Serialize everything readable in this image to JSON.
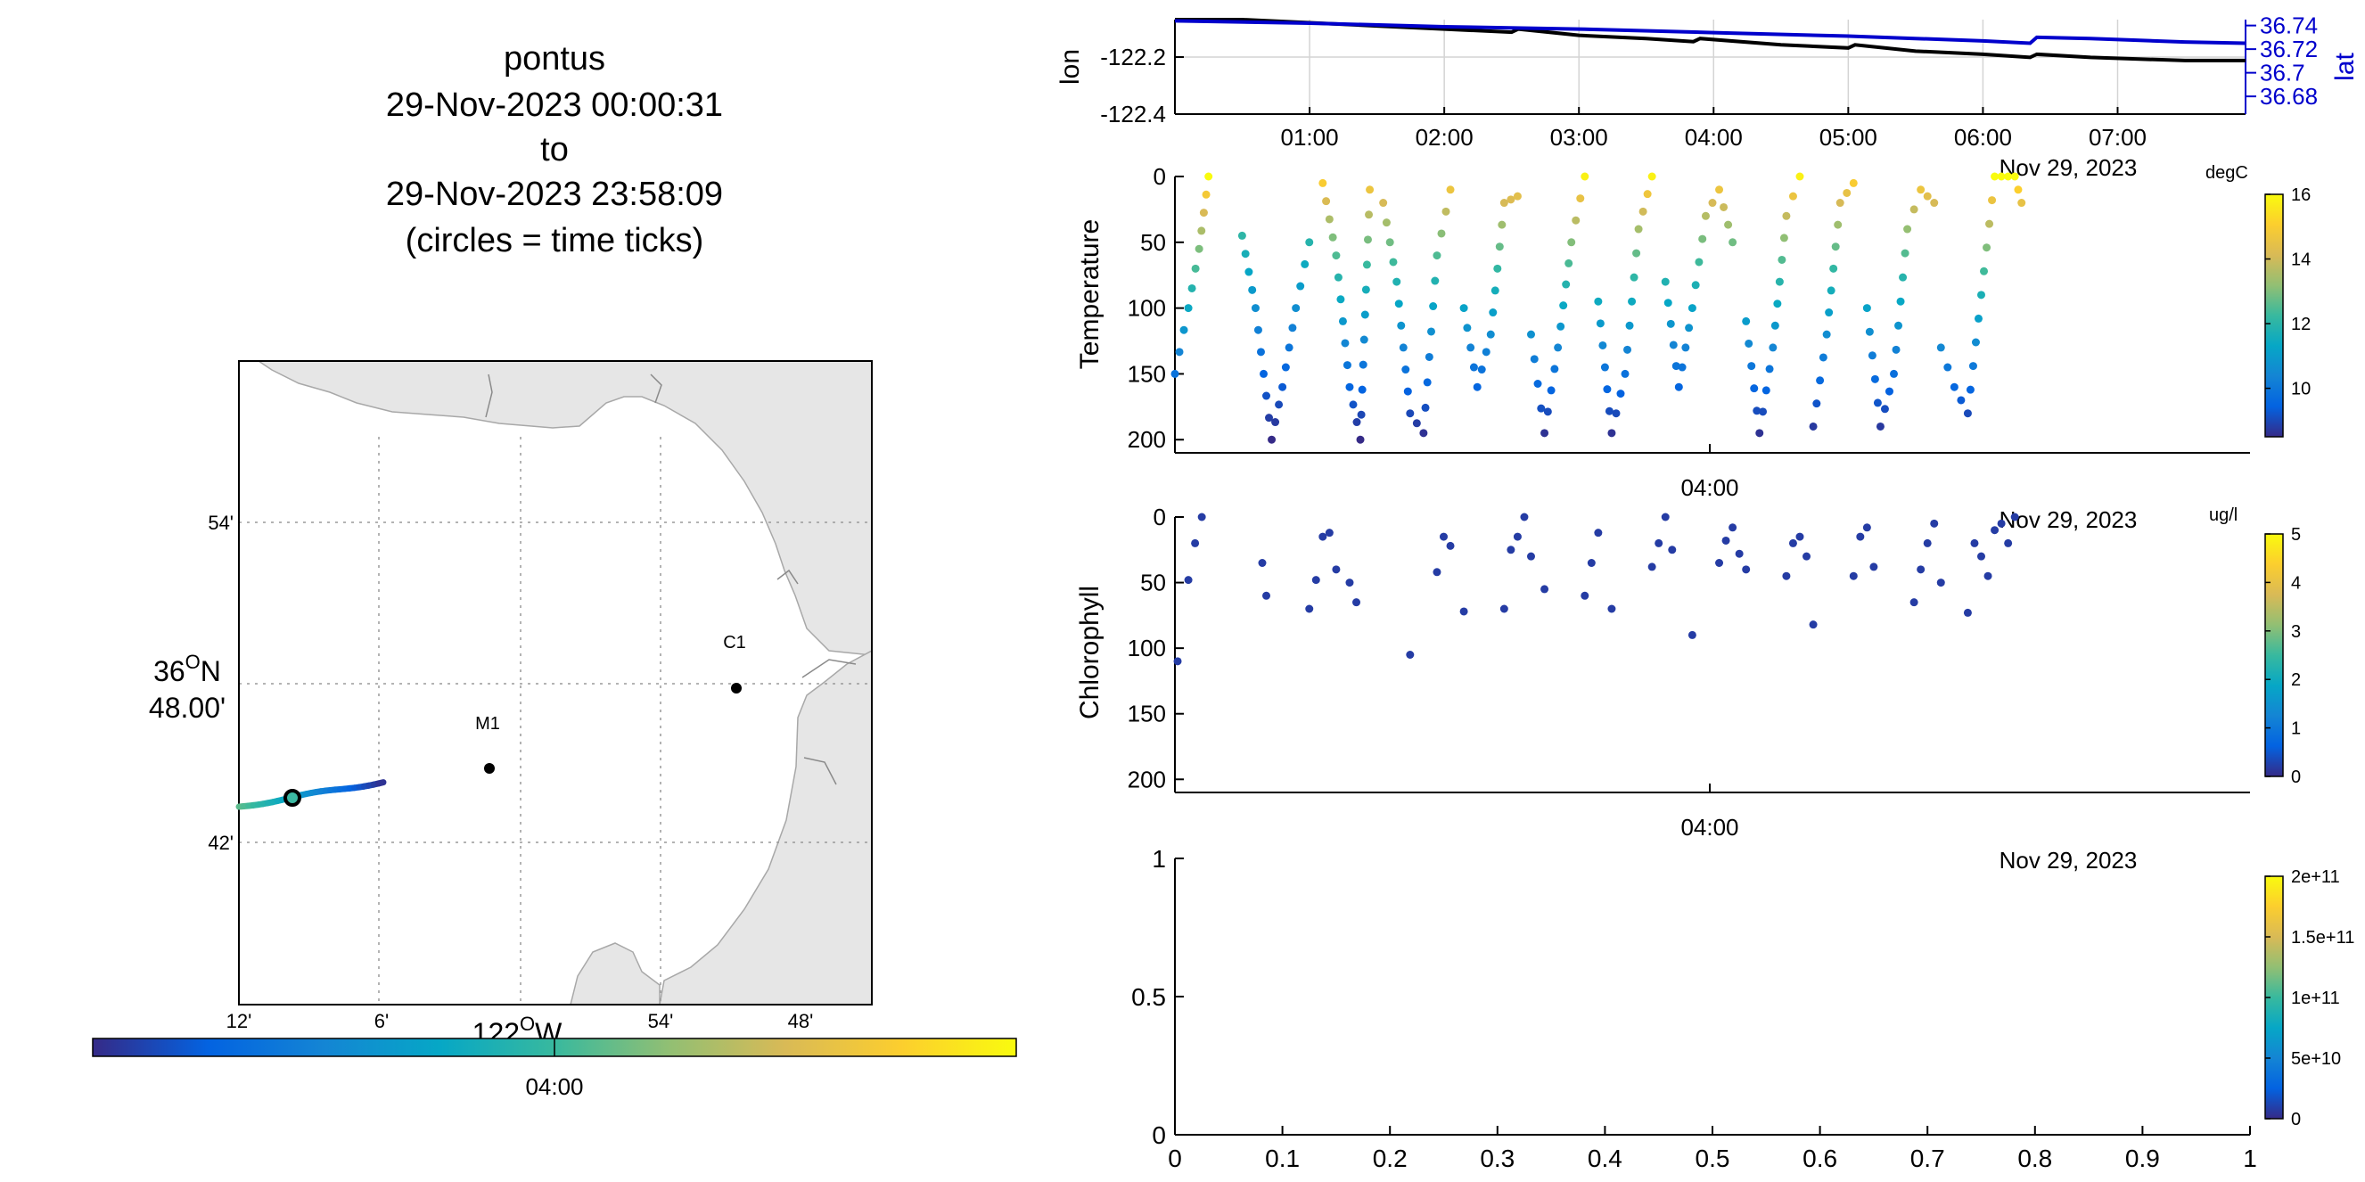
{
  "title_block": {
    "lines": [
      "pontus",
      "29-Nov-2023 00:00:31",
      "to",
      "29-Nov-2023 23:58:09",
      "(circles = time ticks)"
    ]
  },
  "map": {
    "lat_ticks": [
      "54'",
      "42'"
    ],
    "lat_major_deg": "36",
    "lat_major_suffix": "N",
    "lat_major_min": "48.00'",
    "lon_ticks": [
      "12'",
      "6'",
      "54'",
      "48'"
    ],
    "lon_major_deg": "122",
    "lon_major_suffix": "W",
    "stations": [
      {
        "label": "M1",
        "lon": -122.03,
        "lat": 36.748
      },
      {
        "label": "C1",
        "lon": -121.85,
        "lat": 36.8
      }
    ],
    "track_colorbar_label": "04:00"
  },
  "chart_data": [
    {
      "type": "line",
      "name": "position",
      "ylabel": "lon",
      "y2label": "lat",
      "x_ticks": [
        "01:00",
        "02:00",
        "03:00",
        "04:00",
        "05:00",
        "06:00",
        "07:00"
      ],
      "xlim_hours": [
        0.0,
        7.95
      ],
      "ylim": [
        -122.4,
        -122.1
      ],
      "y_ticks": [
        "-122.2",
        "-122.4"
      ],
      "y2lim": [
        36.665,
        36.745
      ],
      "y2_ticks": [
        "36.74",
        "36.72",
        "36.7",
        "36.68"
      ],
      "series": [
        {
          "axis": "left",
          "color": "#000000",
          "x": [
            0.0,
            0.5,
            1.0,
            1.5,
            2.0,
            2.5,
            2.55,
            3.0,
            3.5,
            3.85,
            3.9,
            4.5,
            5.0,
            5.05,
            5.5,
            6.0,
            6.35,
            6.4,
            6.8,
            7.5,
            7.95
          ],
          "y": [
            -122.1,
            -122.1,
            -122.11,
            -122.12,
            -122.13,
            -122.14,
            -122.13,
            -122.15,
            -122.16,
            -122.17,
            -122.16,
            -122.18,
            -122.19,
            -122.18,
            -122.2,
            -122.21,
            -122.22,
            -122.21,
            -122.22,
            -122.23,
            -122.23
          ]
        },
        {
          "axis": "right",
          "color": "#0000cc",
          "x": [
            0.0,
            1.0,
            2.0,
            3.0,
            4.0,
            5.0,
            5.5,
            6.0,
            6.35,
            6.4,
            6.8,
            7.5,
            7.95
          ],
          "y": [
            36.744,
            36.742,
            36.739,
            36.737,
            36.734,
            36.731,
            36.729,
            36.727,
            36.725,
            36.73,
            36.729,
            36.726,
            36.725
          ]
        }
      ]
    },
    {
      "type": "scatter",
      "name": "temperature",
      "ylabel": "Temperature",
      "x_tick": "04:00",
      "date_label": "Nov 29, 2023",
      "ylim": [
        0,
        210
      ],
      "y_ticks": [
        "0",
        "50",
        "100",
        "150",
        "200"
      ],
      "colorbar": {
        "unit": "degC",
        "min": 8.5,
        "max": 16,
        "ticks": [
          "16",
          "14",
          "12",
          "10"
        ]
      },
      "profiles": [
        {
          "x": [
            0.0,
            0.1,
            0.18,
            0.25
          ],
          "depth": [
            150,
            100,
            55,
            0
          ],
          "vtop": 16.0
        },
        {
          "x": [
            0.5,
            0.6,
            0.72,
            0.8,
            0.9,
            1.0
          ],
          "depth": [
            45,
            100,
            200,
            160,
            100,
            50
          ],
          "vtop": 14.0
        },
        {
          "x": [
            1.1,
            1.2,
            1.3,
            1.38,
            1.45
          ],
          "depth": [
            5,
            60,
            160,
            200,
            10
          ],
          "vtop": 15.5
        },
        {
          "x": [
            1.55,
            1.65,
            1.75,
            1.85,
            1.95,
            2.05
          ],
          "depth": [
            20,
            80,
            180,
            195,
            60,
            10
          ],
          "vtop": 15.5
        },
        {
          "x": [
            2.15,
            2.25,
            2.35,
            2.45,
            2.55
          ],
          "depth": [
            100,
            160,
            120,
            20,
            15
          ],
          "vtop": 15.5
        },
        {
          "x": [
            2.65,
            2.75,
            2.85,
            2.95,
            3.05
          ],
          "depth": [
            120,
            195,
            130,
            50,
            0
          ],
          "vtop": 15.8
        },
        {
          "x": [
            3.15,
            3.25,
            3.35,
            3.45,
            3.55
          ],
          "depth": [
            95,
            195,
            150,
            40,
            0
          ],
          "vtop": 15.8
        },
        {
          "x": [
            3.65,
            3.75,
            3.85,
            3.95,
            4.05,
            4.15
          ],
          "depth": [
            80,
            160,
            100,
            30,
            10,
            50
          ],
          "vtop": 15.5
        },
        {
          "x": [
            4.25,
            4.35,
            4.45,
            4.55,
            4.65
          ],
          "depth": [
            110,
            195,
            130,
            30,
            0
          ],
          "vtop": 15.8
        },
        {
          "x": [
            4.75,
            4.85,
            4.95,
            5.05
          ],
          "depth": [
            190,
            120,
            20,
            5
          ],
          "vtop": 15.5
        },
        {
          "x": [
            5.15,
            5.25,
            5.35,
            5.45,
            5.55,
            5.65
          ],
          "depth": [
            100,
            190,
            150,
            40,
            10,
            20
          ],
          "vtop": 15.5
        },
        {
          "x": [
            5.7,
            5.8,
            5.9,
            6.0,
            6.1,
            6.2
          ],
          "depth": [
            130,
            160,
            180,
            90,
            0,
            0
          ],
          "vtop": 16.0
        },
        {
          "x": [
            6.25,
            6.3
          ],
          "depth": [
            0,
            20
          ],
          "vtop": 16.0
        }
      ]
    },
    {
      "type": "scatter",
      "name": "chlorophyll",
      "ylabel": "Chlorophyll",
      "x_tick": "04:00",
      "date_label": "Nov 29, 2023",
      "ylim": [
        0,
        210
      ],
      "y_ticks": [
        "0",
        "50",
        "100",
        "150",
        "200"
      ],
      "colorbar": {
        "unit": "ug/l",
        "min": 0,
        "max": 5,
        "ticks": [
          "5",
          "4",
          "3",
          "2",
          "1",
          "0"
        ]
      },
      "points_x": [
        0.02,
        0.1,
        0.15,
        0.2,
        0.65,
        0.68,
        1.0,
        1.05,
        1.1,
        1.15,
        1.2,
        1.3,
        1.35,
        1.75,
        1.95,
        2.0,
        2.05,
        2.15,
        2.45,
        2.5,
        2.55,
        2.6,
        2.65,
        2.75,
        3.05,
        3.1,
        3.15,
        3.25,
        3.55,
        3.6,
        3.65,
        3.7,
        3.85,
        4.05,
        4.1,
        4.15,
        4.2,
        4.25,
        4.55,
        4.6,
        4.65,
        4.7,
        4.75,
        5.05,
        5.1,
        5.15,
        5.2,
        5.5,
        5.55,
        5.6,
        5.65,
        5.7,
        5.9,
        5.95,
        6.0,
        6.05,
        6.1,
        6.15,
        6.2,
        6.25
      ],
      "points_depth": [
        110,
        48,
        20,
        0,
        35,
        60,
        70,
        48,
        15,
        12,
        40,
        50,
        65,
        105,
        42,
        15,
        22,
        72,
        70,
        25,
        15,
        0,
        30,
        55,
        60,
        35,
        12,
        70,
        38,
        20,
        0,
        25,
        90,
        35,
        18,
        8,
        28,
        40,
        45,
        20,
        15,
        30,
        82,
        45,
        15,
        8,
        38,
        65,
        40,
        20,
        5,
        50,
        73,
        20,
        30,
        45,
        10,
        5,
        20,
        0
      ],
      "value": 0.2
    },
    {
      "type": "scatter",
      "name": "empty",
      "date_label": "Nov 29, 2023",
      "xlim": [
        0,
        1
      ],
      "ylim": [
        0,
        1
      ],
      "x_ticks": [
        "0",
        "0.1",
        "0.2",
        "0.3",
        "0.4",
        "0.5",
        "0.6",
        "0.7",
        "0.8",
        "0.9",
        "1"
      ],
      "y_ticks": [
        "1",
        "0.5",
        "0"
      ],
      "colorbar": {
        "min": 0,
        "max": 200000000000,
        "ticks": [
          "2e+11",
          "1.5e+11",
          "1e+11",
          "5e+10",
          "0"
        ]
      }
    }
  ],
  "colors": {
    "parula": [
      "#352a87",
      "#0363e1",
      "#1485d4",
      "#06a7c6",
      "#38b99e",
      "#92bf73",
      "#d9ba56",
      "#fcce2e",
      "#f9fb0e"
    ],
    "land": "#e6e6e6",
    "lat_axis": "#0000cc"
  }
}
